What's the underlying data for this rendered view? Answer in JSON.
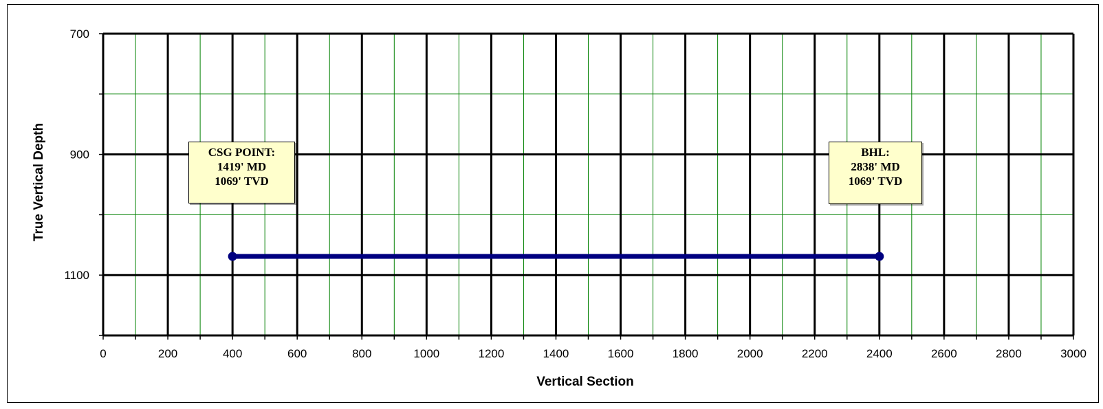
{
  "chart_data": {
    "type": "line",
    "xlabel": "Vertical Section",
    "ylabel": "True Vertical Depth",
    "xlim": [
      0,
      3000
    ],
    "ylim": [
      700,
      1200
    ],
    "y_inverted": true,
    "x_ticks": [
      "0",
      "200",
      "400",
      "600",
      "800",
      "1000",
      "1200",
      "1400",
      "1600",
      "1800",
      "2000",
      "2200",
      "2400",
      "2600",
      "2800",
      "3000"
    ],
    "y_ticks": [
      "700",
      "900",
      "1100"
    ],
    "major_grid": true,
    "minor_grid": true,
    "series": [
      {
        "x": [
          400,
          2400
        ],
        "y": [
          1069,
          1069
        ]
      }
    ],
    "annotations": [
      {
        "lines": [
          "CSG POINT:",
          "1419' MD",
          "1069' TVD"
        ],
        "x": 400,
        "y": 1069
      },
      {
        "lines": [
          "BHL:",
          "2838' MD",
          "1069' TVD"
        ],
        "x": 2400,
        "y": 1069
      }
    ],
    "colors": {
      "series": "#000080",
      "major_grid": "#000000",
      "minor_grid": "#008000",
      "callout_fill": "#ffffcc"
    }
  }
}
